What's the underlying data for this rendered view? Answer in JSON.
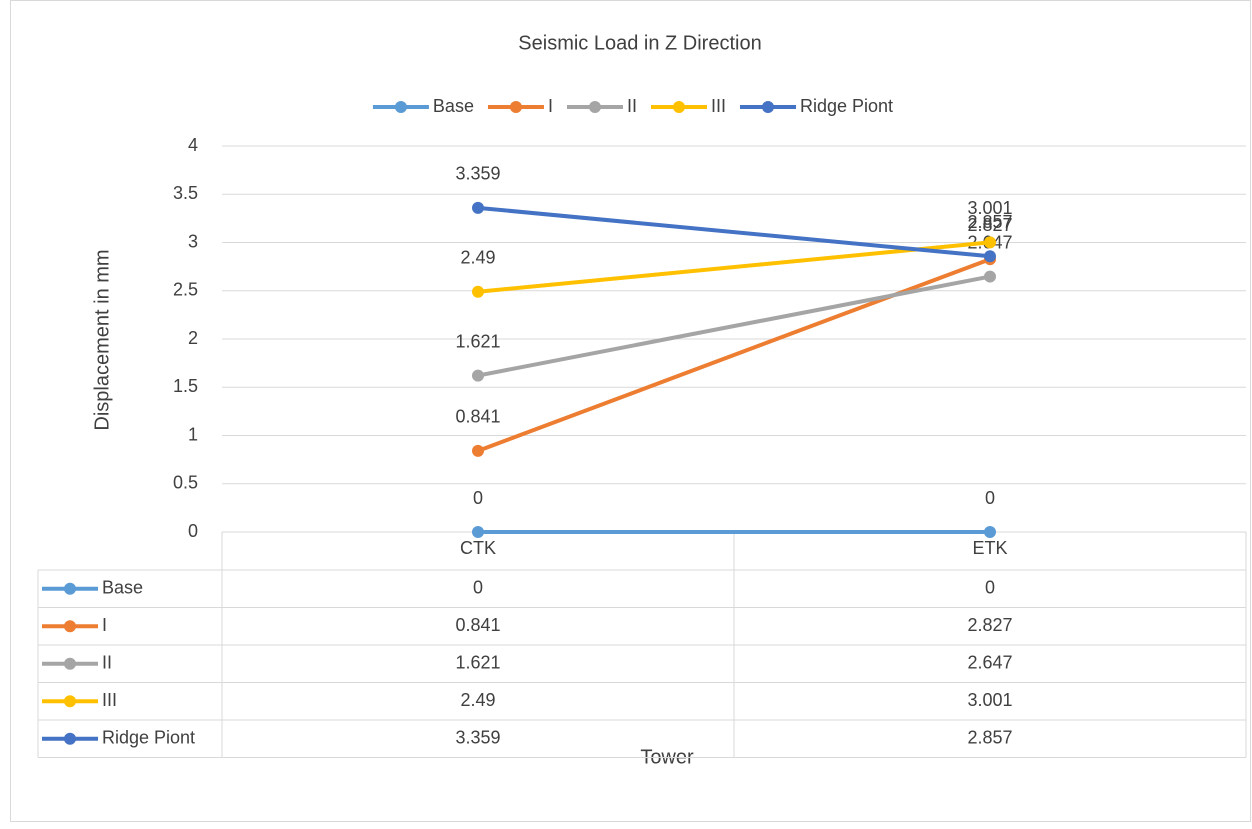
{
  "chart_data": {
    "type": "line",
    "title": "Seismic Load in Z Direction",
    "y_label": "Displacement in mm",
    "x_label": "Tower",
    "categories": [
      "CTK",
      "ETK"
    ],
    "series": [
      {
        "name": "Base",
        "color": "#5b9bd5",
        "values": [
          0,
          0
        ]
      },
      {
        "name": "I",
        "color": "#ed7d31",
        "values": [
          0.841,
          2.827
        ]
      },
      {
        "name": "II",
        "color": "#a5a5a5",
        "values": [
          1.621,
          2.647
        ]
      },
      {
        "name": "III",
        "color": "#ffc000",
        "values": [
          2.49,
          3.001
        ]
      },
      {
        "name": "Ridge Piont",
        "color": "#4472c4",
        "values": [
          3.359,
          2.857
        ]
      }
    ],
    "ylim": [
      0,
      4
    ],
    "yticks": [
      0,
      0.5,
      1,
      1.5,
      2,
      2.5,
      3,
      3.5,
      4
    ],
    "grid": true,
    "legend": "top",
    "data_table": true
  }
}
